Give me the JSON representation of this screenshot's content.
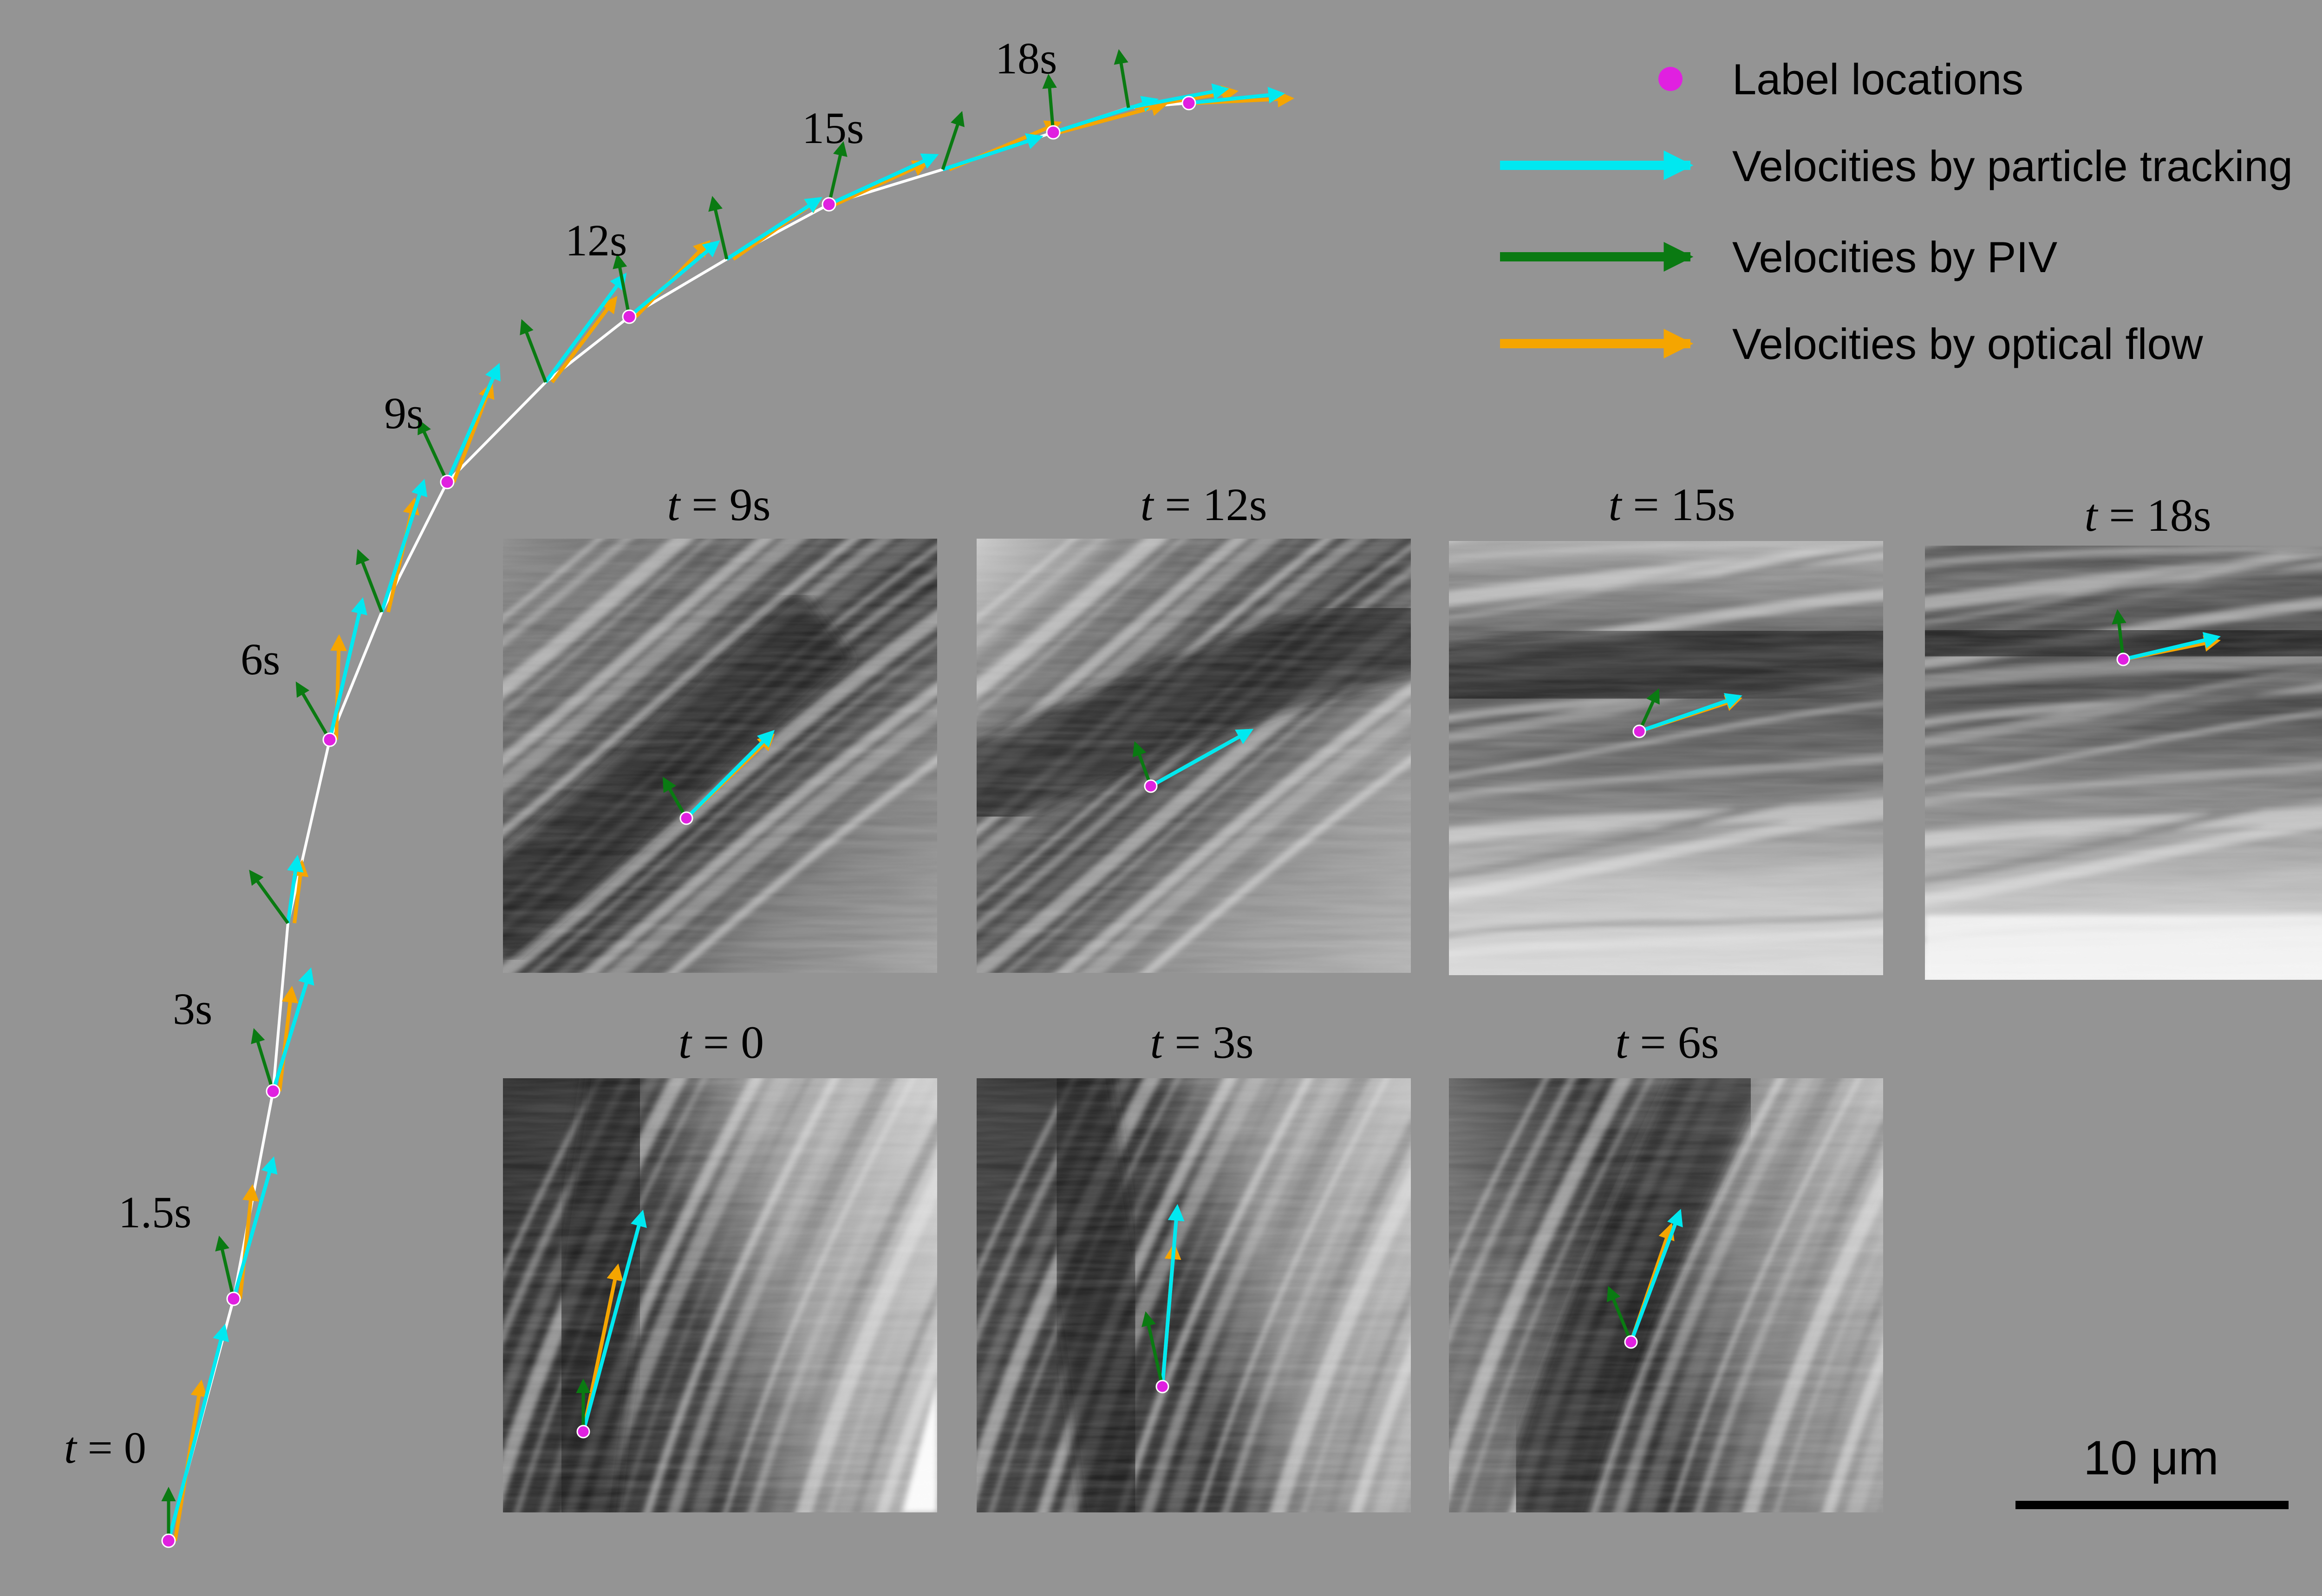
{
  "colors": {
    "background": "#949494",
    "label_location": "#e020e0",
    "particle_tracking": "#00e8f0",
    "piv": "#0a7a12",
    "optical_flow": "#f5a500",
    "scale_bar": "#000000"
  },
  "legend": {
    "items": [
      {
        "key": "label",
        "text": "Label locations",
        "symbol": "dot"
      },
      {
        "key": "pt",
        "text": "Velocities by particle tracking",
        "symbol": "arrow"
      },
      {
        "key": "piv",
        "text": "Velocities by PIV",
        "symbol": "arrow"
      },
      {
        "key": "of",
        "text": "Velocities by optical flow",
        "symbol": "arrow"
      }
    ]
  },
  "trajectory": {
    "time_labels": [
      "t = 0",
      "1.5s",
      "3s",
      "6s",
      "9s",
      "12s",
      "15s",
      "18s"
    ]
  },
  "panels": [
    {
      "title": "t = 9s",
      "image": "microtubule-bundle-frame-9s"
    },
    {
      "title": "t = 12s",
      "image": "microtubule-bundle-frame-12s"
    },
    {
      "title": "t = 15s",
      "image": "microtubule-bundle-frame-15s"
    },
    {
      "title": "t = 18s",
      "image": "microtubule-bundle-frame-18s"
    },
    {
      "title": "t = 0",
      "image": "microtubule-bundle-frame-0s"
    },
    {
      "title": "t = 3s",
      "image": "microtubule-bundle-frame-3s"
    },
    {
      "title": "t = 6s",
      "image": "microtubule-bundle-frame-6s"
    }
  ],
  "scale_bar": {
    "label": "10 μm"
  }
}
